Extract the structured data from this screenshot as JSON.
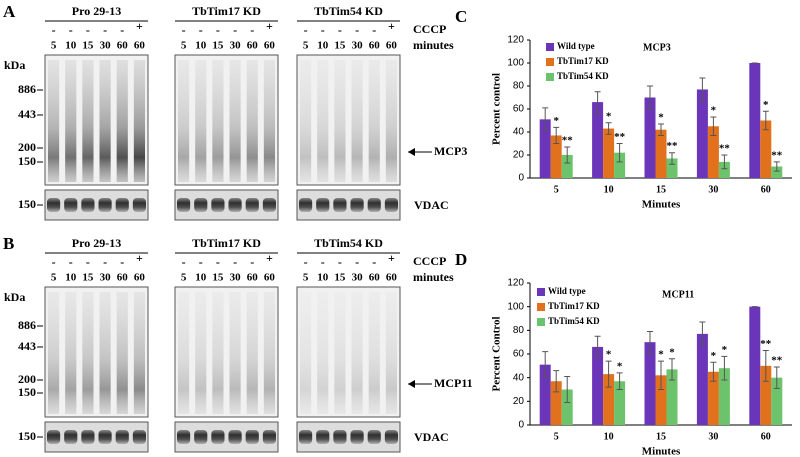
{
  "blots": [
    {
      "panel": "A",
      "groups": [
        "Pro 29-13",
        "TbTim17 KD",
        "TbTim54 KD"
      ],
      "cccp": [
        "-",
        "-",
        "-",
        "-",
        "-",
        "+"
      ],
      "lanes": [
        "5",
        "10",
        "15",
        "30",
        "60",
        "60"
      ],
      "row_labels": [
        "CCCP",
        "minutes"
      ],
      "kda_title": "kDa",
      "markers": [
        "886",
        "443",
        "200",
        "150"
      ],
      "target": "MCP3",
      "loading_marker": "150",
      "loading": "VDAC"
    },
    {
      "panel": "B",
      "groups": [
        "Pro 29-13",
        "TbTim17 KD",
        "TbTim54 KD"
      ],
      "cccp": [
        "-",
        "-",
        "-",
        "-",
        "-",
        "+"
      ],
      "lanes": [
        "5",
        "10",
        "15",
        "30",
        "60",
        "60"
      ],
      "row_labels": [
        "CCCP",
        "minutes"
      ],
      "kda_title": "kDa",
      "markers": [
        "886",
        "443",
        "200",
        "150"
      ],
      "target": "MCP11",
      "loading_marker": "150",
      "loading": "VDAC"
    }
  ],
  "chart_data": [
    {
      "type": "bar",
      "panel": "C",
      "title": "MCP3",
      "x_label": "Minutes",
      "y_label": "Percent control",
      "categories": [
        "5",
        "10",
        "15",
        "30",
        "60"
      ],
      "ylim": [
        0,
        120
      ],
      "yticks": [
        0,
        20,
        40,
        60,
        80,
        100,
        120
      ],
      "series": [
        {
          "name": "Wild type",
          "color": "#6a35b8",
          "values": [
            51,
            66,
            70,
            77,
            100
          ],
          "errors": [
            10,
            9,
            10,
            10,
            0
          ]
        },
        {
          "name": "TbTim17 KD",
          "color": "#e2711d",
          "values": [
            37,
            43,
            42,
            45,
            50
          ],
          "errors": [
            7,
            5,
            5,
            8,
            8
          ],
          "annotations": [
            "*",
            "*",
            "*",
            "*",
            "*"
          ]
        },
        {
          "name": "TbTim54 KD",
          "color": "#6cc36c",
          "values": [
            20,
            22,
            17,
            14,
            10
          ],
          "errors": [
            7,
            8,
            5,
            6,
            4
          ],
          "annotations": [
            "**",
            "**",
            "**",
            "**",
            "**"
          ]
        }
      ]
    },
    {
      "type": "bar",
      "panel": "D",
      "title": "MCP11",
      "x_label": "Minutes",
      "y_label": "Percent Control",
      "categories": [
        "5",
        "10",
        "15",
        "30",
        "60"
      ],
      "ylim": [
        0,
        120
      ],
      "yticks": [
        0,
        20,
        40,
        60,
        80,
        100,
        120
      ],
      "series": [
        {
          "name": "Wild type",
          "color": "#6a35b8",
          "values": [
            51,
            66,
            70,
            77,
            100
          ],
          "errors": [
            11,
            9,
            9,
            10,
            0
          ]
        },
        {
          "name": "TbTim17 KD",
          "color": "#e2711d",
          "values": [
            37,
            43,
            42,
            45,
            50
          ],
          "errors": [
            9,
            11,
            12,
            8,
            13
          ],
          "annotations": [
            null,
            "*",
            "*",
            "*",
            "**"
          ]
        },
        {
          "name": "TbTim54 KD",
          "color": "#6cc36c",
          "values": [
            30,
            37,
            47,
            48,
            40
          ],
          "errors": [
            11,
            7,
            9,
            10,
            9
          ],
          "annotations": [
            null,
            "*",
            "*",
            "*",
            "**"
          ]
        }
      ]
    }
  ]
}
